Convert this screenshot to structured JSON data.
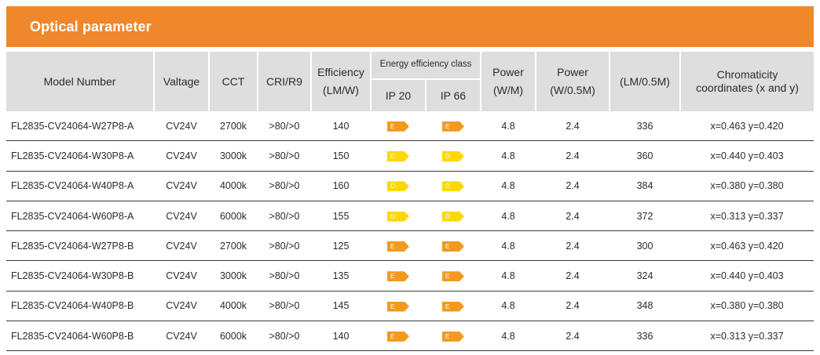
{
  "title": "Optical parameter",
  "headers": {
    "model": "Model Number",
    "voltage": "Valtage",
    "cct": "CCT",
    "cri": "CRI/R9",
    "efficiency_line1": "Efficiency",
    "efficiency_line2": "(LM/W)",
    "energy_class": "Energy efficiency class",
    "ip20": "IP 20",
    "ip66": "IP 66",
    "power_m_line1": "Power",
    "power_m_line2": "(W/M)",
    "power_half_line1": "Power",
    "power_half_line2": "(W/0.5M)",
    "lumen": "(LM/0.5M)",
    "chroma_line1": "Chromaticity",
    "chroma_line2": "coordinates (x and y)"
  },
  "colors": {
    "title_bar": "#f0872a",
    "header_bg": "#dedede",
    "class_E": "#f39a1e",
    "class_D": "#fcd800"
  },
  "rows": [
    {
      "model": "FL2835-CV24064-W27P8-A",
      "voltage": "CV24V",
      "cct": "2700k",
      "cri": ">80/>0",
      "efficiency": "140",
      "ip20": "E",
      "ip66": "E",
      "power_m": "4.8",
      "power_half": "2.4",
      "lumen": "336",
      "chroma": "x=0.463 y=0.420"
    },
    {
      "model": "FL2835-CV24064-W30P8-A",
      "voltage": "CV24V",
      "cct": "3000k",
      "cri": ">80/>0",
      "efficiency": "150",
      "ip20": "D",
      "ip66": "D",
      "power_m": "4.8",
      "power_half": "2.4",
      "lumen": "360",
      "chroma": "x=0.440 y=0.403"
    },
    {
      "model": "FL2835-CV24064-W40P8-A",
      "voltage": "CV24V",
      "cct": "4000k",
      "cri": ">80/>0",
      "efficiency": "160",
      "ip20": "D",
      "ip66": "D",
      "power_m": "4.8",
      "power_half": "2.4",
      "lumen": "384",
      "chroma": "x=0.380 y=0.380"
    },
    {
      "model": "FL2835-CV24064-W60P8-A",
      "voltage": "CV24V",
      "cct": "6000k",
      "cri": ">80/>0",
      "efficiency": "155",
      "ip20": "D",
      "ip66": "D",
      "power_m": "4.8",
      "power_half": "2.4",
      "lumen": "372",
      "chroma": "x=0.313 y=0.337"
    },
    {
      "model": "FL2835-CV24064-W27P8-B",
      "voltage": "CV24V",
      "cct": "2700k",
      "cri": ">80/>0",
      "efficiency": "125",
      "ip20": "E",
      "ip66": "E",
      "power_m": "4.8",
      "power_half": "2.4",
      "lumen": "300",
      "chroma": "x=0.463 y=0.420"
    },
    {
      "model": "FL2835-CV24064-W30P8-B",
      "voltage": "CV24V",
      "cct": "3000k",
      "cri": ">80/>0",
      "efficiency": "135",
      "ip20": "E",
      "ip66": "E",
      "power_m": "4.8",
      "power_half": "2.4",
      "lumen": "324",
      "chroma": "x=0.440 y=0.403"
    },
    {
      "model": "FL2835-CV24064-W40P8-B",
      "voltage": "CV24V",
      "cct": "4000k",
      "cri": ">80/>0",
      "efficiency": "145",
      "ip20": "E",
      "ip66": "E",
      "power_m": "4.8",
      "power_half": "2.4",
      "lumen": "348",
      "chroma": "x=0.380 y=0.380"
    },
    {
      "model": "FL2835-CV24064-W60P8-B",
      "voltage": "CV24V",
      "cct": "6000k",
      "cri": ">80/>0",
      "efficiency": "140",
      "ip20": "E",
      "ip66": "E",
      "power_m": "4.8",
      "power_half": "2.4",
      "lumen": "336",
      "chroma": "x=0.313 y=0.337"
    }
  ]
}
